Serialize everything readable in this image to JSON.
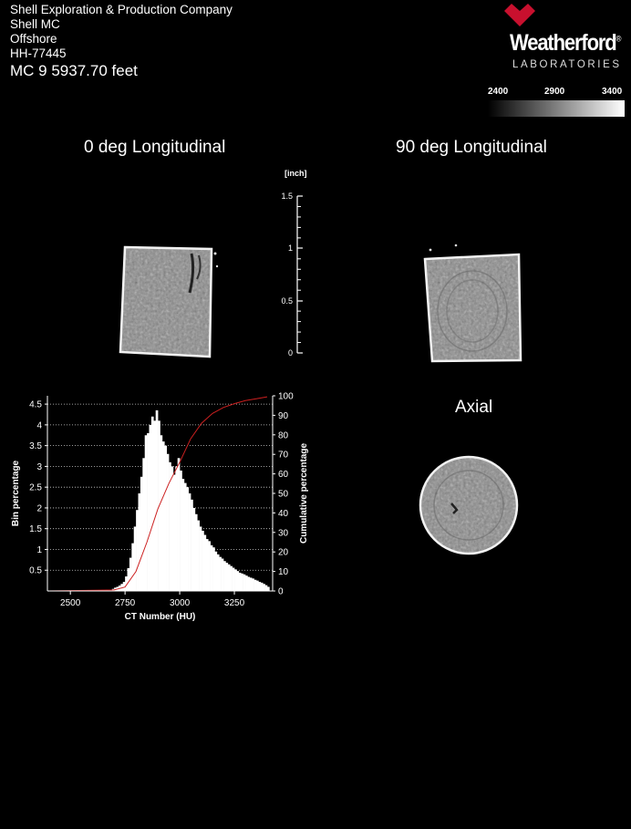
{
  "header": {
    "company": "Shell Exploration & Production Company",
    "field": "Shell MC",
    "location": "Offshore",
    "sample_id": "HH-77445",
    "depth_label": "MC 9  5937.70  feet"
  },
  "logo": {
    "name": "Weatherford",
    "trademark": "®",
    "subtitle": "LABORATORIES",
    "brand_color": "#c8102e"
  },
  "colorbar": {
    "ticks": [
      "2400",
      "2900",
      "3400"
    ],
    "low_color": "#000000",
    "high_color": "#ffffff"
  },
  "panels": {
    "long0_title": "0 deg Longitudinal",
    "long90_title": "90 deg Longitudinal",
    "axial_title": "Axial"
  },
  "scale_bar": {
    "unit_label": "[inch]",
    "ticks": [
      "1.5",
      "1",
      "0.5",
      "0"
    ]
  },
  "chart_data": {
    "type": "bar",
    "xlabel": "CT Number (HU)",
    "ylabel": "Bin percentage",
    "y2label": "Cumulative percentage",
    "xlim": [
      2395,
      3425
    ],
    "ylim": [
      0,
      4.7
    ],
    "y2lim": [
      0,
      100
    ],
    "xticks": [
      2500,
      2750,
      3000,
      3250
    ],
    "yticks": [
      0.5,
      1,
      1.5,
      2,
      2.5,
      3,
      3.5,
      4,
      4.5
    ],
    "y2ticks": [
      0,
      10,
      20,
      30,
      40,
      50,
      60,
      70,
      80,
      90,
      100
    ],
    "grid": "horizontal dotted",
    "bin_width": 10,
    "series": [
      {
        "kind": "histogram",
        "color": "#ffffff",
        "x": [
          2695,
          2705,
          2715,
          2725,
          2735,
          2745,
          2755,
          2765,
          2775,
          2785,
          2795,
          2805,
          2815,
          2825,
          2835,
          2845,
          2855,
          2865,
          2875,
          2885,
          2895,
          2905,
          2915,
          2925,
          2935,
          2945,
          2955,
          2965,
          2975,
          2985,
          2995,
          3005,
          3015,
          3025,
          3035,
          3045,
          3055,
          3065,
          3075,
          3085,
          3095,
          3105,
          3115,
          3125,
          3135,
          3145,
          3155,
          3165,
          3175,
          3185,
          3195,
          3205,
          3215,
          3225,
          3235,
          3245,
          3255,
          3265,
          3275,
          3285,
          3295,
          3305,
          3315,
          3325,
          3335,
          3345,
          3355,
          3365,
          3375,
          3385,
          3395,
          3405
        ],
        "values": [
          0.05,
          0.08,
          0.1,
          0.13,
          0.17,
          0.22,
          0.35,
          0.55,
          0.8,
          1.15,
          1.55,
          1.95,
          2.35,
          2.75,
          3.2,
          3.75,
          3.8,
          4.0,
          4.2,
          4.1,
          4.35,
          4.1,
          3.75,
          3.6,
          3.5,
          3.3,
          3.1,
          3.0,
          2.8,
          3.0,
          3.2,
          2.9,
          2.7,
          2.6,
          2.5,
          2.35,
          2.2,
          2.0,
          1.85,
          1.7,
          1.55,
          1.45,
          1.35,
          1.25,
          1.2,
          1.1,
          1.05,
          0.95,
          0.88,
          0.82,
          0.78,
          0.72,
          0.68,
          0.64,
          0.6,
          0.56,
          0.52,
          0.48,
          0.44,
          0.42,
          0.4,
          0.37,
          0.34,
          0.32,
          0.3,
          0.27,
          0.25,
          0.22,
          0.2,
          0.17,
          0.14,
          0.1
        ]
      },
      {
        "kind": "cumulative",
        "color": "#cc2020",
        "x": [
          2400,
          2700,
          2750,
          2800,
          2850,
          2900,
          2950,
          3000,
          3050,
          3100,
          3150,
          3200,
          3250,
          3300,
          3350,
          3400
        ],
        "values": [
          0,
          0.5,
          2,
          10,
          25,
          42,
          55,
          66,
          78,
          86,
          91,
          94,
          96,
          97.5,
          98.5,
          99.5
        ]
      }
    ]
  }
}
